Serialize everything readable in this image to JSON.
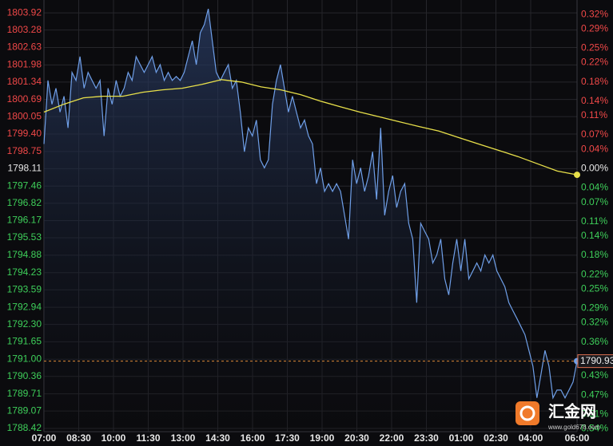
{
  "chart_data": {
    "type": "line",
    "base_price": 1798.11,
    "ylim": [
      1788.3,
      1804.4
    ],
    "y2lim": [
      -0.546,
      0.35
    ],
    "xlim": [
      0,
      23
    ],
    "yticks": [
      1803.92,
      1803.28,
      1802.63,
      1801.98,
      1801.34,
      1800.69,
      1800.05,
      {
        "value": 1799.4,
        "label": "1799.40"
      },
      1798.75,
      1798.11,
      1797.46,
      1796.82,
      1796.17,
      1795.53,
      1794.88,
      1794.23,
      1793.59,
      1792.94,
      {
        "value": 1792.3,
        "label": "1792.30"
      },
      1791.65,
      {
        "value": 1791,
        "label": "1791.00"
      },
      1790.36,
      1789.71,
      1789.07,
      1788.42
    ],
    "y2ticks": [
      {
        "value": 0.32,
        "label": "0.32%"
      },
      {
        "value": 0.29,
        "label": "0.29%"
      },
      {
        "value": 0.25,
        "label": "0.25%"
      },
      {
        "value": 0.22,
        "label": "0.22%"
      },
      {
        "value": 0.18,
        "label": "0.18%"
      },
      {
        "value": 0.14,
        "label": "0.14%"
      },
      {
        "value": 0.11,
        "label": "0.11%"
      },
      {
        "value": 0.07,
        "label": "0.07%"
      },
      {
        "value": 0.04,
        "label": "0.04%"
      },
      {
        "value": 0,
        "label": "0.00%"
      },
      {
        "value": -0.04,
        "label": "0.04%"
      },
      {
        "value": -0.07,
        "label": "0.07%"
      },
      {
        "value": -0.11,
        "label": "0.11%"
      },
      {
        "value": -0.14,
        "label": "0.14%"
      },
      {
        "value": -0.18,
        "label": "0.18%"
      },
      {
        "value": -0.22,
        "label": "0.22%"
      },
      {
        "value": -0.25,
        "label": "0.25%"
      },
      {
        "value": -0.29,
        "label": "0.29%"
      },
      {
        "value": -0.32,
        "label": "0.32%"
      },
      {
        "value": -0.36,
        "label": "0.36%"
      },
      {
        "value": -0.4,
        "label": "0.40%"
      },
      {
        "value": -0.43,
        "label": "0.43%"
      },
      {
        "value": -0.47,
        "label": "0.47%"
      },
      {
        "value": -0.51,
        "label": "0.51%"
      },
      {
        "value": -0.54,
        "label": "0.54%"
      }
    ],
    "xticks": [
      {
        "value": 0,
        "label": "07:00"
      },
      {
        "value": 1.5,
        "label": "08:30"
      },
      {
        "value": 3,
        "label": "10:00"
      },
      {
        "value": 4.5,
        "label": "11:30"
      },
      {
        "value": 6,
        "label": "13:00"
      },
      {
        "value": 7.5,
        "label": "14:30"
      },
      {
        "value": 9,
        "label": "16:00"
      },
      {
        "value": 10.5,
        "label": "17:30"
      },
      {
        "value": 12,
        "label": "19:00"
      },
      {
        "value": 13.5,
        "label": "20:30"
      },
      {
        "value": 15,
        "label": "22:00"
      },
      {
        "value": 16.5,
        "label": "23:30"
      },
      {
        "value": 18,
        "label": "01:00"
      },
      {
        "value": 19.5,
        "label": "02:30"
      },
      {
        "value": 21,
        "label": "04:00"
      },
      {
        "value": 23,
        "label": "06:00"
      }
    ],
    "grid": true,
    "series": [
      {
        "color": "#6f9fe8",
        "values": [
          1799.03,
          1801.4,
          1800.51,
          1801.11,
          1800.22,
          1800.81,
          1799.63,
          1801.7,
          1801.4,
          1802.29,
          1801.11,
          1801.7,
          1801.4,
          1801.11,
          1801.4,
          1799.33,
          1801.11,
          1800.51,
          1801.4,
          1800.81,
          1801.11,
          1801.7,
          1801.4,
          1802.29,
          1801.99,
          1801.7,
          1801.99,
          1802.29,
          1801.7,
          1801.99,
          1801.4,
          1801.7,
          1801.4,
          1801.55,
          1801.4,
          1801.7,
          1802.29,
          1802.88,
          1801.99,
          1803.18,
          1803.48,
          1804.07,
          1802.88,
          1801.7,
          1801.4,
          1801.7,
          1801.99,
          1801.11,
          1801.4,
          1800.22,
          1798.74,
          1799.63,
          1799.33,
          1799.92,
          1798.44,
          1798.14,
          1798.44,
          1800.51,
          1801.4,
          1801.99,
          1801.11,
          1800.22,
          1800.81,
          1800.22,
          1799.63,
          1799.92,
          1799.33,
          1799.03,
          1797.55,
          1798.14,
          1797.26,
          1797.55,
          1797.26,
          1797.55,
          1797.26,
          1796.37,
          1795.48,
          1798.44,
          1797.55,
          1798.14,
          1797.26,
          1797.85,
          1798.74,
          1796.96,
          1799.63,
          1796.37,
          1797.26,
          1797.85,
          1796.66,
          1797.26,
          1797.55,
          1796.07,
          1795.48,
          1793.11,
          1796.07,
          1795.77,
          1795.48,
          1794.59,
          1794.89,
          1795.48,
          1794.0,
          1793.4,
          1794.59,
          1795.48,
          1794.29,
          1795.48,
          1794.0,
          1794.29,
          1794.59,
          1794.29,
          1794.89,
          1794.59,
          1794.89,
          1794.29,
          1794.0,
          1793.7,
          1793.11,
          1792.81,
          1792.52,
          1792.22,
          1791.92,
          1791.33,
          1790.74,
          1789.56,
          1790.44,
          1791.33,
          1790.74,
          1789.56,
          1789.85,
          1789.85,
          1789.56,
          1789.85,
          1790.15,
          1790.93
        ]
      },
      {
        "color": "#e8e04a",
        "values": [
          1800.22,
          1800.51,
          1800.75,
          1800.81,
          1800.81,
          1800.96,
          1801.05,
          1801.11,
          1801.25,
          1801.43,
          1801.34,
          1801.16,
          1801.05,
          1800.87,
          1800.63,
          1800.42,
          1800.22,
          1800.04,
          1799.86,
          1799.68,
          1799.51,
          1799.27,
          1799.03,
          1798.8,
          1798.56,
          1798.29,
          1798.02,
          1797.88
        ]
      }
    ],
    "current_price": 1790.93,
    "watermark": {
      "name": "汇金网",
      "url": "www.gold678.com"
    }
  }
}
